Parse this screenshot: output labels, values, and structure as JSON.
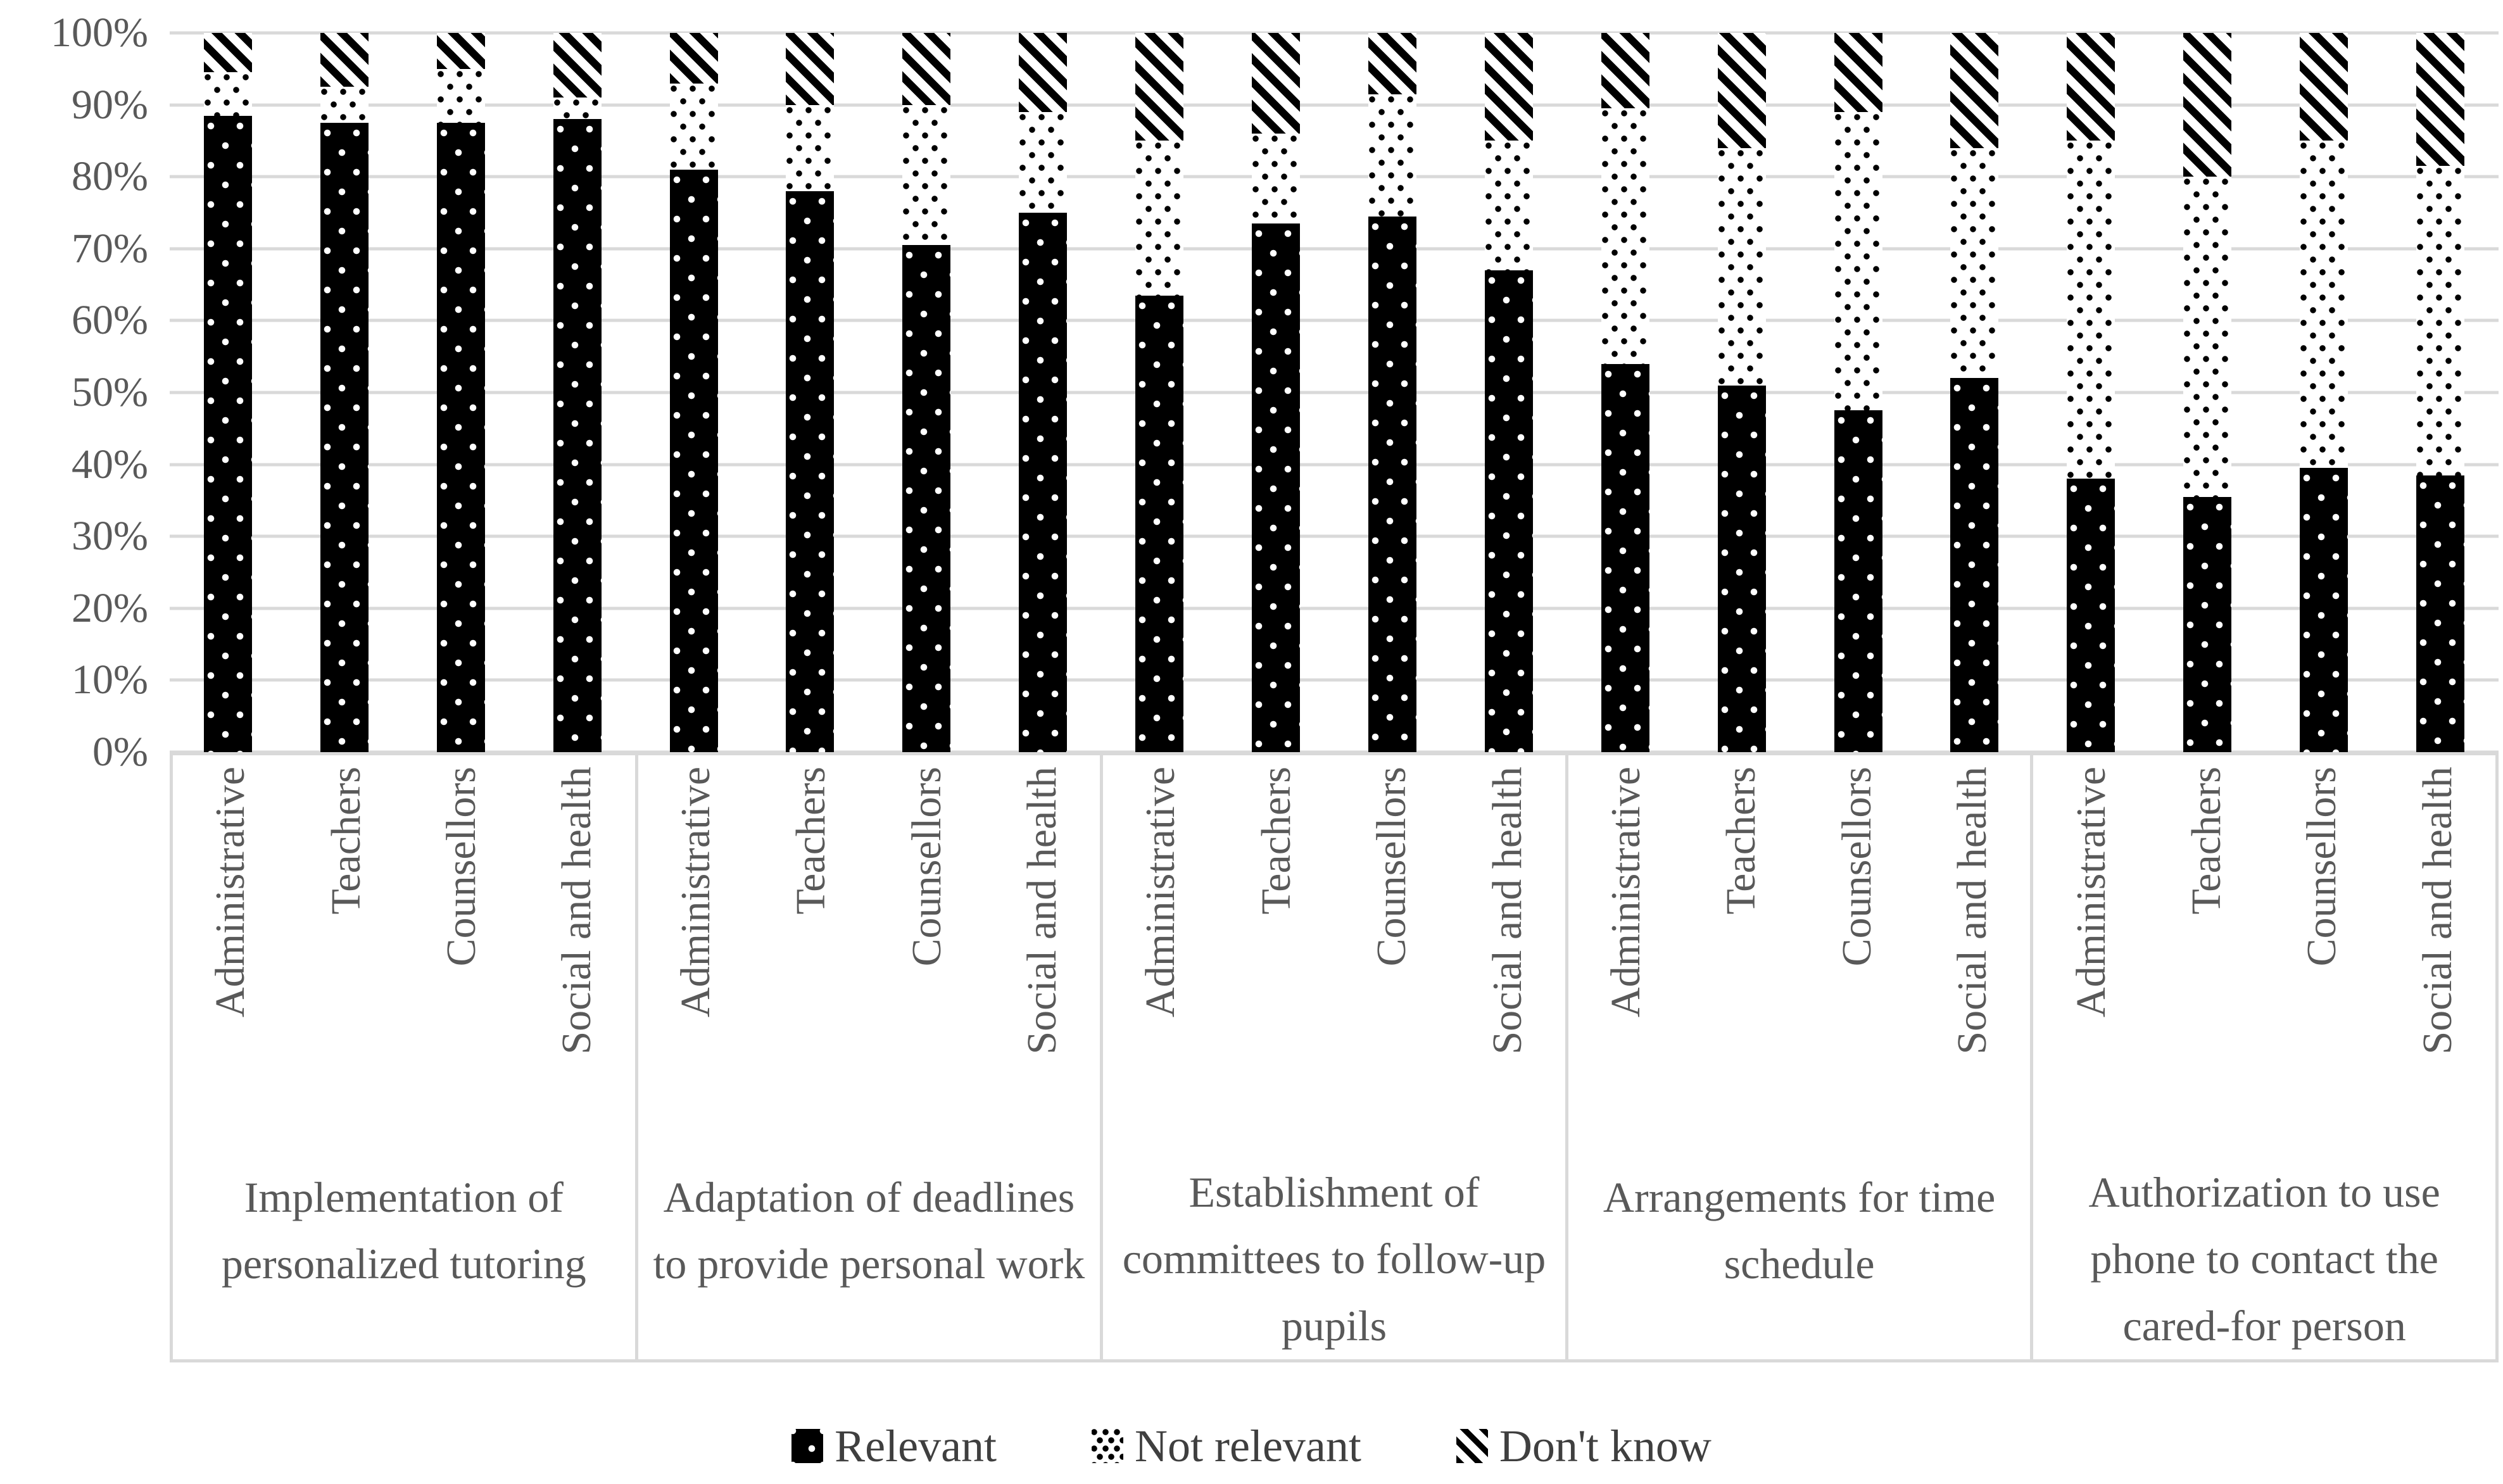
{
  "colors": {
    "background": "#ffffff",
    "series_fill": "#000000",
    "gridline": "#d9d9d9",
    "axis_text": "#595959",
    "legend_text": "#3f3f3f"
  },
  "chart_data": {
    "type": "bar",
    "subtype": "stacked-100-percent",
    "title": "",
    "xlabel": "",
    "ylabel": "",
    "ylim": [
      0,
      100
    ],
    "grid": true,
    "legend_position": "bottom",
    "y_ticks": [
      "0%",
      "10%",
      "20%",
      "30%",
      "40%",
      "50%",
      "60%",
      "70%",
      "80%",
      "90%",
      "100%"
    ],
    "series": [
      {
        "name": "Relevant",
        "pattern": "black-with-white-dots"
      },
      {
        "name": "Not relevant",
        "pattern": "white-with-black-dots"
      },
      {
        "name": "Don't know",
        "pattern": "diagonal-hatch"
      }
    ],
    "sub_categories": [
      "Administrative",
      "Teachers",
      "Counsellors",
      "Social and health"
    ],
    "groups": [
      {
        "label": "Implementation of personalized tutoring",
        "bars": [
          {
            "label": "Administrative",
            "relevant": 88.5,
            "not_relevant": 6,
            "dont_know": 5.5
          },
          {
            "label": "Teachers",
            "relevant": 87.5,
            "not_relevant": 5,
            "dont_know": 7.5
          },
          {
            "label": "Counsellors",
            "relevant": 87.5,
            "not_relevant": 7.5,
            "dont_know": 5
          },
          {
            "label": "Social and health",
            "relevant": 88,
            "not_relevant": 3,
            "dont_know": 9
          }
        ]
      },
      {
        "label": "Adaptation of deadlines to provide personal work",
        "bars": [
          {
            "label": "Administrative",
            "relevant": 81,
            "not_relevant": 12,
            "dont_know": 7
          },
          {
            "label": "Teachers",
            "relevant": 78,
            "not_relevant": 12,
            "dont_know": 10
          },
          {
            "label": "Counsellors",
            "relevant": 70.5,
            "not_relevant": 19.5,
            "dont_know": 10
          },
          {
            "label": "Social and health",
            "relevant": 75,
            "not_relevant": 14,
            "dont_know": 11
          }
        ]
      },
      {
        "label": "Establishment of committees to follow-up pupils",
        "bars": [
          {
            "label": "Administrative",
            "relevant": 63.5,
            "not_relevant": 21.5,
            "dont_know": 15
          },
          {
            "label": "Teachers",
            "relevant": 73.5,
            "not_relevant": 12.5,
            "dont_know": 14
          },
          {
            "label": "Counsellors",
            "relevant": 74.5,
            "not_relevant": 17,
            "dont_know": 8.5
          },
          {
            "label": "Social and health",
            "relevant": 67,
            "not_relevant": 18,
            "dont_know": 15
          }
        ]
      },
      {
        "label": "Arrangements for time schedule",
        "bars": [
          {
            "label": "Administrative",
            "relevant": 54,
            "not_relevant": 35.5,
            "dont_know": 10.5
          },
          {
            "label": "Teachers",
            "relevant": 51,
            "not_relevant": 33,
            "dont_know": 16
          },
          {
            "label": "Counsellors",
            "relevant": 47.5,
            "not_relevant": 41.5,
            "dont_know": 11
          },
          {
            "label": "Social and health",
            "relevant": 52,
            "not_relevant": 32,
            "dont_know": 16
          }
        ]
      },
      {
        "label": "Authorization to use phone to contact the cared-for person",
        "bars": [
          {
            "label": "Administrative",
            "relevant": 38,
            "not_relevant": 47,
            "dont_know": 15
          },
          {
            "label": "Teachers",
            "relevant": 35.5,
            "not_relevant": 44.5,
            "dont_know": 20
          },
          {
            "label": "Counsellors",
            "relevant": 39.5,
            "not_relevant": 45.5,
            "dont_know": 15
          },
          {
            "label": "Social and health",
            "relevant": 38.5,
            "not_relevant": 43,
            "dont_know": 18.5
          }
        ]
      }
    ]
  },
  "legend": {
    "items": [
      {
        "label": "Relevant"
      },
      {
        "label": "Not relevant"
      },
      {
        "label": "Don't know"
      }
    ]
  }
}
